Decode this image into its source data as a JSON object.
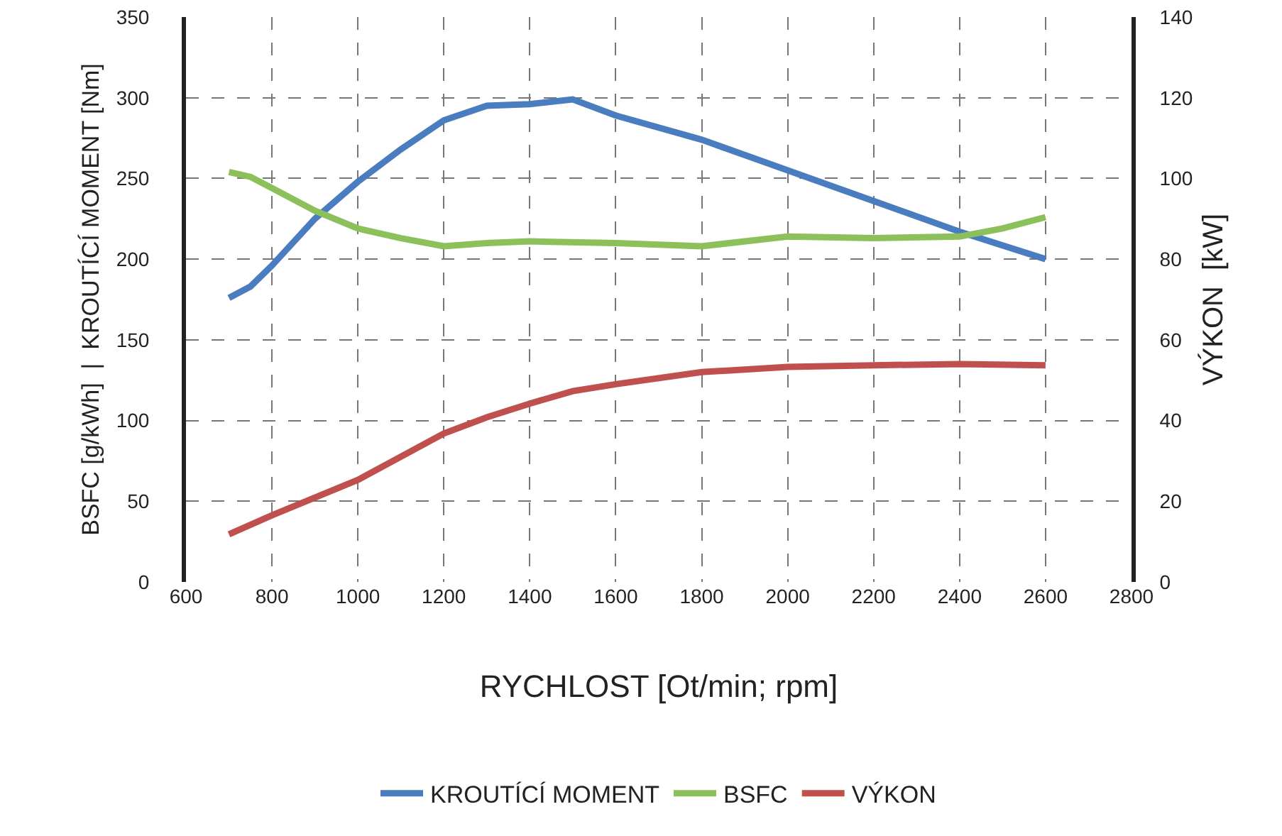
{
  "chart_data": {
    "type": "line",
    "xlabel": "RYCHLOST [Ot/min; rpm]",
    "ylabel": "BSFC [g/kWh]  |  KROUTÍCÍ MOMENT [Nm]",
    "y2label": "VÝKON  [kW]",
    "xlim": [
      600,
      2800
    ],
    "xticks": [
      600,
      800,
      1000,
      1200,
      1400,
      1600,
      1800,
      2000,
      2200,
      2400,
      2600,
      2800
    ],
    "ylim": [
      0,
      350
    ],
    "yticks": [
      0,
      50,
      100,
      150,
      200,
      250,
      300,
      350
    ],
    "y2lim": [
      0,
      140
    ],
    "y2ticks": [
      0,
      20,
      40,
      60,
      80,
      100,
      120,
      140
    ],
    "grid": true,
    "legend": "bottom",
    "marker": "none",
    "line_style": "solid",
    "series": [
      {
        "name": "KROUTÍCÍ MOMENT",
        "color": "#4a7cc0",
        "x": [
          700,
          750,
          800,
          900,
          1000,
          1100,
          1200,
          1300,
          1400,
          1500,
          1600,
          1800,
          2000,
          2200,
          2400,
          2600
        ],
        "values": [
          176,
          183,
          196,
          225,
          248,
          268,
          286,
          295,
          296,
          299,
          289,
          274,
          255,
          236,
          217,
          200
        ]
      },
      {
        "name": "BSFC",
        "color": "#8cc05a",
        "x": [
          700,
          750,
          800,
          900,
          1000,
          1100,
          1200,
          1300,
          1400,
          1600,
          1800,
          2000,
          2200,
          2400,
          2500,
          2600
        ],
        "values": [
          254,
          251,
          244,
          230,
          219,
          213,
          208,
          210,
          211,
          210,
          208,
          214,
          213,
          214,
          219,
          226
        ]
      },
      {
        "name": "VÝKON",
        "color": "#c0504d",
        "axis": "y2",
        "x": [
          700,
          800,
          1000,
          1200,
          1300,
          1400,
          1500,
          1600,
          1800,
          2000,
          2200,
          2400,
          2600
        ],
        "values": [
          11.8,
          16.5,
          25.3,
          36.8,
          40.8,
          44.2,
          47.3,
          49,
          52,
          53.3,
          53.7,
          54,
          53.7
        ]
      }
    ]
  }
}
